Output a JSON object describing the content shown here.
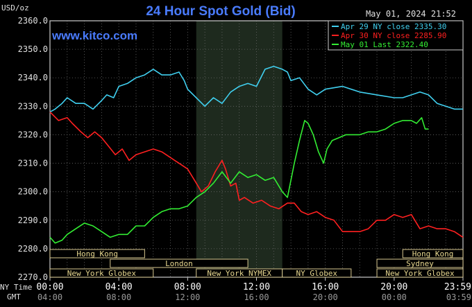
{
  "chart_data": {
    "type": "line",
    "title": "24 Hour Spot Gold (Bid)",
    "ylabel": "USD/oz",
    "timestamp": "May 01, 2024 21:52",
    "watermark": "www.kitco.com",
    "ylim": [
      2270,
      2360
    ],
    "xlim": [
      0,
      24
    ],
    "yticks": [
      "2360.0",
      "2350.0",
      "2340.0",
      "2330.0",
      "2320.0",
      "2310.0",
      "2300.0",
      "2290.0",
      "2280.0",
      "2270.0"
    ],
    "xaxis": {
      "row1_label": "NY Time",
      "row2_label": "GMT",
      "ticks": [
        {
          "x": 0,
          "ny": "00:00",
          "gmt": "04:00"
        },
        {
          "x": 4,
          "ny": "04:00",
          "gmt": "08:00"
        },
        {
          "x": 8,
          "ny": "08:00",
          "gmt": "12:00"
        },
        {
          "x": 12,
          "ny": "12:00",
          "gmt": "16:00"
        },
        {
          "x": 16,
          "ny": "16:00",
          "gmt": "20:00"
        },
        {
          "x": 20,
          "ny": "20:00",
          "gmt": "00:00"
        },
        {
          "x": 24,
          "ny": "23:59",
          "gmt": "03:59"
        }
      ]
    },
    "shaded_region": [
      8.5,
      13.5
    ],
    "sessions": [
      {
        "label": "Hong Kong",
        "start": 0,
        "end": 5.5,
        "row": 0
      },
      {
        "label": "Hong Kong",
        "start": 20.5,
        "end": 24,
        "row": 0
      },
      {
        "label": "London",
        "start": 3.5,
        "end": 11.5,
        "row": 1
      },
      {
        "label": "Sydney",
        "start": 19,
        "end": 24,
        "row": 1
      },
      {
        "label": "New York Globex",
        "start": 0,
        "end": 6,
        "row": 2
      },
      {
        "label": "New York NYMEX",
        "start": 8.5,
        "end": 13.5,
        "row": 2
      },
      {
        "label": "NY Globex",
        "start": 13.5,
        "end": 17.5,
        "row": 2
      },
      {
        "label": "New York Globex",
        "start": 19,
        "end": 24,
        "row": 2
      }
    ],
    "series": [
      {
        "name": "Apr 29 NY close 2335.30",
        "color": "#40d0f0",
        "x": [
          0,
          0.3,
          0.7,
          1,
          1.5,
          2,
          2.5,
          3,
          3.3,
          3.7,
          4,
          4.5,
          5,
          5.5,
          6,
          6.5,
          7,
          7.5,
          7.8,
          8,
          8.5,
          9,
          9.5,
          10,
          10.5,
          11,
          11.5,
          12,
          12.5,
          13,
          13.5,
          13.8,
          14,
          14.5,
          15,
          15.5,
          16,
          17,
          18,
          19,
          20,
          20.5,
          21,
          21.5,
          22,
          22.5,
          23,
          23.5,
          24
        ],
        "values": [
          2328,
          2329,
          2331,
          2333,
          2331,
          2331,
          2329,
          2332,
          2334,
          2333,
          2337,
          2338,
          2340,
          2341,
          2343,
          2341,
          2341,
          2342,
          2339,
          2336,
          2333,
          2330,
          2333,
          2331,
          2335,
          2337,
          2338,
          2337,
          2343,
          2344,
          2343,
          2342,
          2339,
          2340,
          2336,
          2334,
          2336,
          2337,
          2335,
          2334,
          2333,
          2333,
          2334,
          2335,
          2334,
          2331,
          2330,
          2329,
          2329
        ]
      },
      {
        "name": "Apr 30 NY close 2285.90",
        "color": "#ff2020",
        "x": [
          0,
          0.5,
          1,
          1.3,
          1.8,
          2.2,
          2.6,
          3,
          3.4,
          3.8,
          4.2,
          4.6,
          5,
          5.5,
          6,
          6.5,
          7,
          7.5,
          8,
          8.4,
          8.8,
          9.2,
          9.6,
          10,
          10.2,
          10.5,
          10.8,
          11,
          11.3,
          11.8,
          12.3,
          12.8,
          13.3,
          13.8,
          14.2,
          14.6,
          15,
          15.5,
          16,
          16.5,
          17,
          17.5,
          18,
          18.5,
          19,
          19.5,
          20,
          20.5,
          21,
          21.5,
          22,
          22.5,
          23,
          23.5,
          24
        ],
        "values": [
          2328,
          2325,
          2326,
          2324,
          2321,
          2319,
          2321,
          2319,
          2316,
          2313,
          2315,
          2311,
          2313,
          2314,
          2315,
          2314,
          2312,
          2310,
          2308,
          2304,
          2300,
          2302,
          2307,
          2311,
          2308,
          2302,
          2303,
          2297,
          2298,
          2296,
          2297,
          2295,
          2294,
          2296,
          2296,
          2293,
          2292,
          2293,
          2291,
          2290,
          2286,
          2286,
          2286,
          2287,
          2290,
          2290,
          2292,
          2291,
          2292,
          2287,
          2288,
          2287,
          2287,
          2286,
          2284
        ]
      },
      {
        "name": "May 01 Last 2322.40",
        "color": "#33ee33",
        "x": [
          0,
          0.3,
          0.7,
          1,
          1.5,
          2,
          2.5,
          3,
          3.5,
          4,
          4.5,
          5,
          5.5,
          6,
          6.5,
          7,
          7.5,
          8,
          8.5,
          9,
          9.5,
          10,
          10.5,
          11,
          11.5,
          12,
          12.5,
          13,
          13.5,
          13.8,
          14,
          14.2,
          14.5,
          14.8,
          15,
          15.3,
          15.6,
          15.9,
          16.1,
          16.4,
          16.8,
          17.2,
          17.6,
          18,
          18.5,
          19,
          19.5,
          20,
          20.5,
          21,
          21.3,
          21.6,
          21.8,
          22
        ],
        "values": [
          2284,
          2282,
          2283,
          2285,
          2287,
          2289,
          2288,
          2286,
          2284,
          2285,
          2285,
          2288,
          2288,
          2291,
          2293,
          2294,
          2294,
          2295,
          2298,
          2300,
          2303,
          2307,
          2303,
          2307,
          2305,
          2306,
          2304,
          2305,
          2300,
          2298,
          2304,
          2310,
          2318,
          2325,
          2324,
          2320,
          2314,
          2310,
          2315,
          2318,
          2319,
          2320,
          2320,
          2320,
          2321,
          2321,
          2322,
          2324,
          2325,
          2325,
          2324,
          2326,
          2322,
          2322
        ]
      }
    ]
  }
}
